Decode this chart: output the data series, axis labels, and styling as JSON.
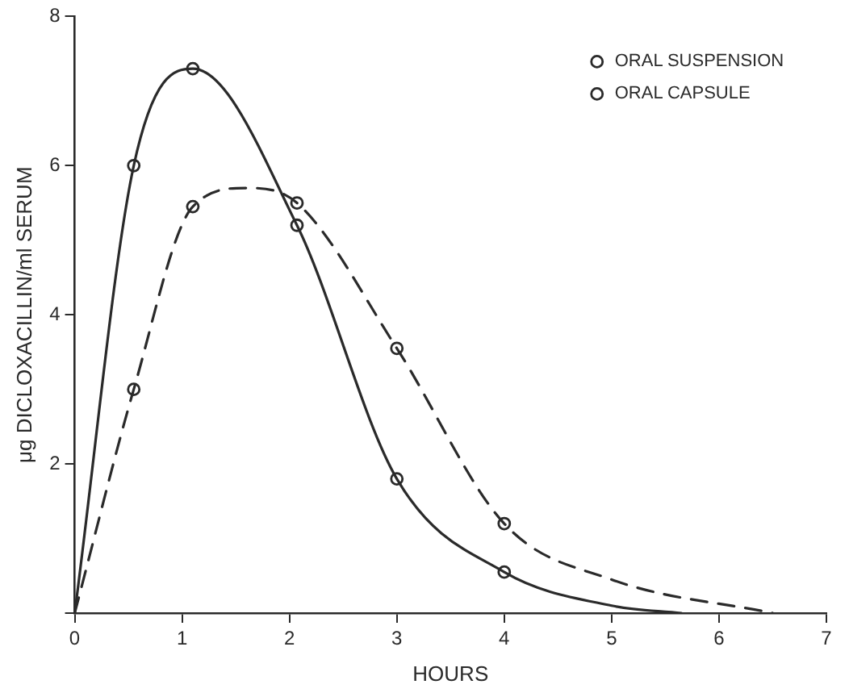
{
  "chart_data": {
    "type": "line",
    "xlabel": "HOURS",
    "ylabel": "μg DICLOXACILLIN/ml SERUM",
    "xlim": [
      0,
      7
    ],
    "xticks": [
      0,
      1,
      2,
      3,
      4,
      5,
      6,
      7
    ],
    "ylim": [
      0,
      8
    ],
    "yticks": [
      {
        "value": 0,
        "label": null
      },
      2,
      4,
      6,
      8
    ],
    "grid": false,
    "legend": "top right",
    "series": [
      {
        "color": "#2a2a2a",
        "line_style": "solid",
        "marker": "none",
        "x": [
          0,
          0.55,
          1.1,
          2.07,
          3,
          4,
          5,
          5.65
        ],
        "values": [
          0,
          6.0,
          7.3,
          5.2,
          1.8,
          0.55,
          0.1,
          0
        ]
      },
      {
        "color": "#2a2a2a",
        "line_style": "dashed",
        "marker": "none",
        "x": [
          0,
          0.55,
          1.1,
          1.6,
          2.07,
          3,
          4,
          5,
          6.5
        ],
        "values": [
          0,
          3.0,
          5.45,
          5.7,
          5.5,
          3.55,
          1.2,
          0.45,
          0
        ]
      },
      {
        "type": "scatter",
        "name": "ORAL SUSPENSION",
        "color": "#2a2a2a",
        "marker": "circle",
        "x": [
          0.55,
          1.1,
          2.07,
          3,
          4
        ],
        "values": [
          6.0,
          7.3,
          5.2,
          1.8,
          0.55
        ]
      },
      {
        "type": "scatter",
        "name": "ORAL CAPSULE",
        "color": "#2a2a2a",
        "marker": "circle",
        "x": [
          0.55,
          1.1,
          2.07,
          3,
          4
        ],
        "values": [
          3.0,
          5.45,
          5.5,
          3.55,
          1.2
        ]
      }
    ]
  }
}
